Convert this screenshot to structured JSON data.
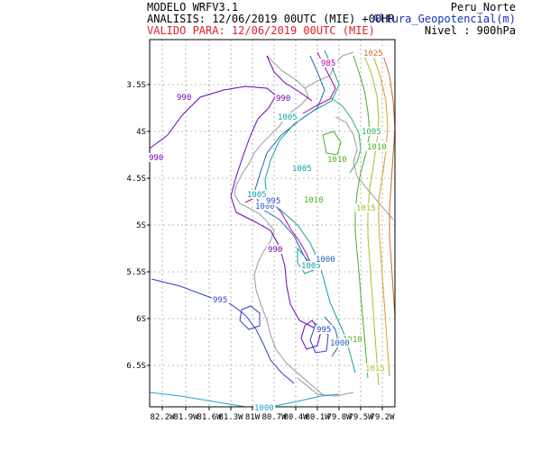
{
  "header": {
    "model": "MODELO WRFV3.1",
    "analysis": "ANALISIS: 12/06/2019 00UTC (MIE) +00HR",
    "valid": "VALIDO PARA: 12/06/2019 00UTC (MIE)",
    "region": "Peru_Norte",
    "variable": "Altura_Geopotencial(m)",
    "level": "Nivel : 900hPa"
  },
  "colors": {
    "valid_text": "#e0202a",
    "variable_text": "#1030c0",
    "coast": "#a8a8a8",
    "grid": "#808080"
  },
  "map": {
    "lon_ticks": [
      "82.2W",
      "81.9W",
      "81.6W",
      "81.3W",
      "81W",
      "80.7W",
      "80.4W",
      "80.1W",
      "79.8W",
      "79.5W",
      "79.2W"
    ],
    "lat_ticks": [
      "3.5S",
      "4S",
      "4.5S",
      "5S",
      "5.5S",
      "6S",
      "6.5S"
    ]
  },
  "contour_labels": [
    {
      "text": "1025",
      "color": "#d26a28"
    },
    {
      "text": "985",
      "color": "#b000b0"
    },
    {
      "text": "990",
      "color": "#7000b0"
    },
    {
      "text": "990",
      "color": "#7000b0"
    },
    {
      "text": "990",
      "color": "#7000b0"
    },
    {
      "text": "1005",
      "color": "#10a0a0"
    },
    {
      "text": "1005",
      "color": "#10a0a0"
    },
    {
      "text": "1005",
      "color": "#10a0a0"
    },
    {
      "text": "1005",
      "color": "#10a0a0"
    },
    {
      "text": "1005",
      "color": "#30b060"
    },
    {
      "text": "1010",
      "color": "#40b020"
    },
    {
      "text": "1010",
      "color": "#40b020"
    },
    {
      "text": "1010",
      "color": "#40b020"
    },
    {
      "text": "1010",
      "color": "#40b020"
    },
    {
      "text": "1015",
      "color": "#a0c020"
    },
    {
      "text": "1015",
      "color": "#a0c020"
    },
    {
      "text": "1000",
      "color": "#2060c0"
    },
    {
      "text": "1000",
      "color": "#2060c0"
    },
    {
      "text": "1000",
      "color": "#2060c0"
    },
    {
      "text": "995",
      "color": "#3040c0"
    },
    {
      "text": "995",
      "color": "#3040c0"
    },
    {
      "text": "995",
      "color": "#3040c0"
    },
    {
      "text": "990",
      "color": "#7000b0"
    },
    {
      "text": "1000",
      "color": "#20a0d0"
    }
  ]
}
